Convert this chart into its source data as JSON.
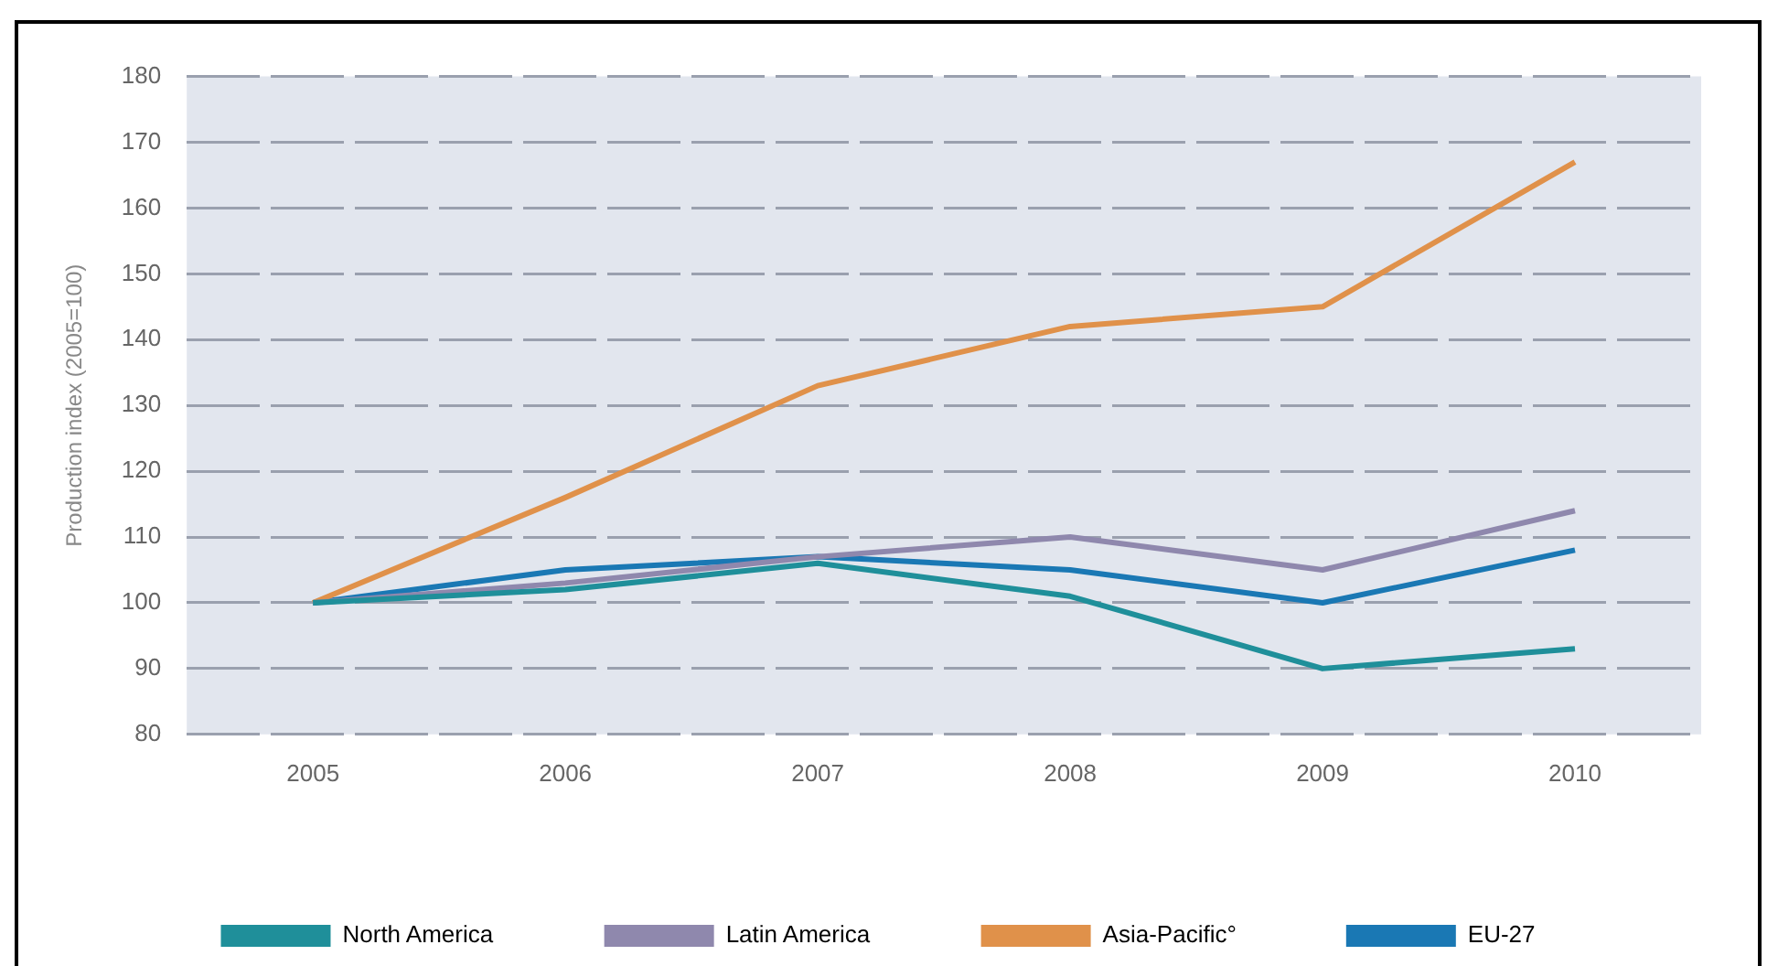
{
  "chart_data": {
    "type": "line",
    "ylabel": "Production index (2005=100)",
    "categories": [
      "2005",
      "2006",
      "2007",
      "2008",
      "2009",
      "2010"
    ],
    "series": [
      {
        "name": "North America",
        "color": "#1f8f9a",
        "values": [
          100,
          102,
          106,
          101,
          90,
          93
        ]
      },
      {
        "name": "Latin America",
        "color": "#8f88ad",
        "values": [
          100,
          103,
          107,
          110,
          105,
          114
        ]
      },
      {
        "name": "Asia-Pacific°",
        "color": "#e0914a",
        "values": [
          100,
          116,
          133,
          142,
          145,
          167
        ]
      },
      {
        "name": "EU-27",
        "color": "#1a78b4",
        "values": [
          100,
          105,
          107,
          105,
          100,
          108
        ]
      }
    ],
    "ylim": [
      80,
      180
    ],
    "yticks": [
      80,
      90,
      100,
      110,
      120,
      130,
      140,
      150,
      160,
      170,
      180
    ],
    "grid": "y",
    "legend": "bottom",
    "marker": "none",
    "line_style": "solid"
  }
}
